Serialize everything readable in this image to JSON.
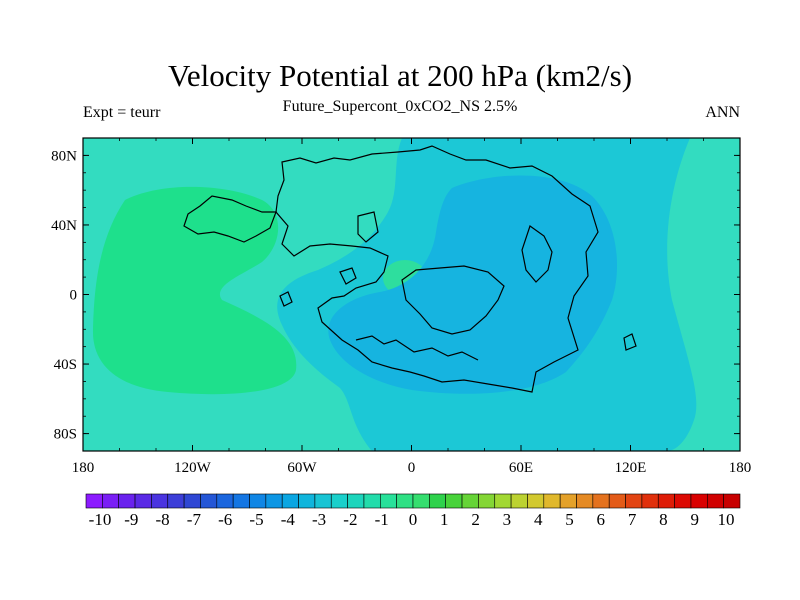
{
  "header": {
    "title": "Velocity Potential at 200 hPa (km2/s)",
    "subtitle": "Future_Supercont_0xCO2_NS 2.5%",
    "left_label": "Expt = teurr",
    "right_label": "ANN"
  },
  "map": {
    "lon_range": [
      -180,
      180
    ],
    "lat_range": [
      -90,
      90
    ],
    "lat_ticks": [
      {
        "value": 80,
        "label": "80N"
      },
      {
        "value": 40,
        "label": "40N"
      },
      {
        "value": 0,
        "label": "0"
      },
      {
        "value": -40,
        "label": "40S"
      },
      {
        "value": -80,
        "label": "80S"
      }
    ],
    "lon_ticks": [
      {
        "value": -180,
        "label": "180"
      },
      {
        "value": -120,
        "label": "120W"
      },
      {
        "value": -60,
        "label": "60W"
      },
      {
        "value": 0,
        "label": "0"
      },
      {
        "value": 60,
        "label": "60E"
      },
      {
        "value": 120,
        "label": "120E"
      },
      {
        "value": 180,
        "label": "180"
      }
    ],
    "field_colors": {
      "level_0_to_1": "#33dcc0",
      "level_1_to_2": "#1ee08c",
      "level_minus1_to_0": "#1cc8d6",
      "level_minus2_to_minus1": "#16b4e0"
    }
  },
  "colorbar": {
    "labels": [
      "-10",
      "-9",
      "-8",
      "-7",
      "-6",
      "-5",
      "-4",
      "-3",
      "-2",
      "-1",
      "0",
      "1",
      "2",
      "3",
      "4",
      "5",
      "6",
      "7",
      "8",
      "9",
      "10"
    ],
    "colors": [
      "#8c1bff",
      "#7a1ff5",
      "#6a22ee",
      "#5a2ae6",
      "#4a34e0",
      "#3c3ed8",
      "#2f47d4",
      "#2456d6",
      "#1b66de",
      "#1476e3",
      "#1086e5",
      "#0d96e4",
      "#0aa6e2",
      "#10b5dc",
      "#18c4d4",
      "#1ad0cb",
      "#1dd5bc",
      "#23dcab",
      "#28e19a",
      "#2fe084",
      "#35de6f",
      "#2fd24c",
      "#48d33a",
      "#66d437",
      "#84d635",
      "#a2d833",
      "#bcd231",
      "#d2c92f",
      "#e0b82c",
      "#e4a129",
      "#e58a24",
      "#e4721e",
      "#e35b18",
      "#e24412",
      "#e0300c",
      "#de1c07",
      "#dc0a03",
      "#d90000",
      "#d00000",
      "#c80000"
    ]
  }
}
